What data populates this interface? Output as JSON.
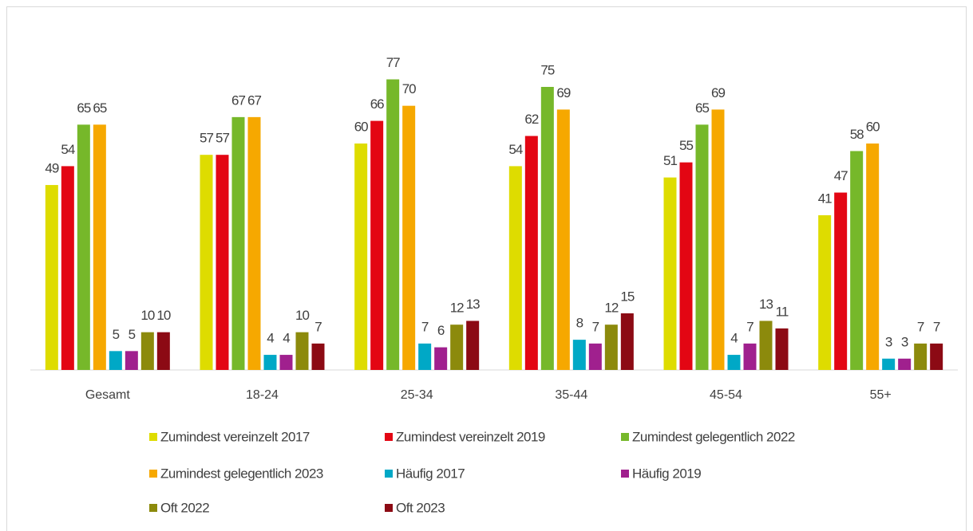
{
  "chart_data": {
    "type": "bar",
    "categories": [
      "Gesamt",
      "18-24",
      "25-34",
      "35-44",
      "45-54",
      "55+"
    ],
    "series": [
      {
        "name": "Zumindest vereinzelt 2017",
        "color": "#dedc00",
        "values": [
          49,
          57,
          60,
          54,
          51,
          41
        ]
      },
      {
        "name": "Zumindest vereinzelt 2019",
        "color": "#e30613",
        "values": [
          54,
          57,
          66,
          62,
          55,
          47
        ]
      },
      {
        "name": "Zumindest gelegentlich 2022",
        "color": "#76b82a",
        "values": [
          65,
          67,
          77,
          75,
          65,
          58
        ]
      },
      {
        "name": "Zumindest gelegentlich 2023",
        "color": "#f6a800",
        "values": [
          65,
          67,
          70,
          69,
          69,
          60
        ]
      },
      {
        "name": "Häufig 2017",
        "color": "#00a8c6",
        "values": [
          5,
          4,
          7,
          8,
          4,
          3
        ]
      },
      {
        "name": "Häufig 2019",
        "color": "#a0208e",
        "values": [
          5,
          4,
          6,
          7,
          7,
          3
        ]
      },
      {
        "name": "Oft 2022",
        "color": "#8c8a0c",
        "values": [
          10,
          10,
          12,
          12,
          13,
          7
        ]
      },
      {
        "name": "Oft 2023",
        "color": "#8c0a14",
        "values": [
          10,
          7,
          13,
          15,
          11,
          7
        ]
      }
    ],
    "ylim": [
      0,
      90
    ],
    "legend": "bottom"
  }
}
